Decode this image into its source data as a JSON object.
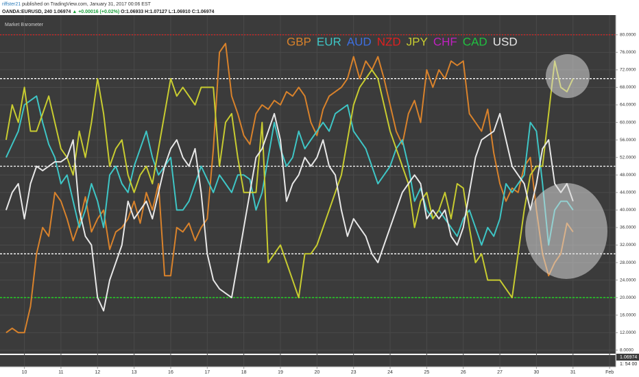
{
  "header": {
    "author": "riffster21",
    "published": "published on TradingView.com, January 31, 2017 00:06 EST",
    "symbol": "OANDA:EURUSD, 240",
    "price": "1.06974",
    "change": "▲ +0.00016 (+0.02%)",
    "ohlc": [
      "O:1.06933",
      "H:1.07127",
      "L:1.06910",
      "C:1.06974"
    ]
  },
  "price_scale": {
    "last": "1.06974",
    "countdown": "1: 54 00"
  },
  "chart_data": {
    "type": "line",
    "title": "Market Barometer",
    "x": [
      1,
      2,
      3,
      4,
      5,
      6,
      7,
      8,
      9,
      10,
      11,
      12,
      13,
      14,
      15,
      16,
      17,
      18,
      19,
      20,
      21,
      22,
      23,
      24,
      25,
      26,
      27,
      28,
      29,
      30,
      31,
      32,
      33,
      34,
      35,
      36,
      37,
      38,
      39,
      40,
      41,
      42,
      43,
      44,
      45,
      46,
      47,
      48,
      49,
      50,
      51,
      52,
      53,
      54,
      55,
      56,
      57,
      58,
      59,
      60,
      61,
      62,
      63,
      64,
      65,
      66,
      67,
      68,
      69,
      70,
      71,
      72,
      73,
      74,
      75,
      76,
      77,
      78,
      79,
      80,
      81,
      82,
      83,
      84,
      85,
      86,
      87,
      88,
      89,
      90,
      91,
      92,
      93,
      94
    ],
    "series": [
      {
        "name": "GBP",
        "color": "#d9822b",
        "values": [
          12,
          13,
          12,
          12,
          18,
          30,
          36,
          34,
          44,
          42,
          38,
          33,
          37,
          43,
          35,
          38,
          40,
          31,
          35,
          36,
          38,
          42,
          37,
          44,
          40,
          46,
          25,
          25,
          36,
          35,
          37,
          33,
          36,
          38,
          54,
          76,
          78,
          66,
          62,
          57,
          55,
          62,
          64,
          63,
          65,
          64,
          67,
          66,
          68,
          66,
          60,
          57,
          63,
          66,
          67,
          68,
          70,
          75,
          70,
          74,
          72,
          75,
          70,
          64,
          58,
          55,
          62,
          65,
          60,
          72,
          68,
          72,
          70,
          74,
          73,
          74,
          62,
          60,
          58,
          63,
          53,
          46,
          42,
          45,
          44,
          50,
          52,
          40,
          30,
          25,
          28,
          30,
          37,
          35
        ]
      },
      {
        "name": "EUR",
        "color": "#3ec6c6",
        "values": [
          52,
          55,
          58,
          64,
          65,
          66,
          60,
          55,
          52,
          46,
          48,
          42,
          36,
          40,
          46,
          42,
          36,
          48,
          50,
          46,
          44,
          50,
          54,
          58,
          52,
          48,
          50,
          52,
          40,
          40,
          42,
          46,
          50,
          47,
          44,
          48,
          46,
          44,
          48,
          48,
          47,
          40,
          44,
          52,
          60,
          54,
          50,
          52,
          58,
          54,
          56,
          58,
          60,
          58,
          62,
          63,
          64,
          58,
          56,
          54,
          50,
          46,
          48,
          50,
          54,
          56,
          50,
          42,
          45,
          40,
          38,
          40,
          38,
          36,
          34,
          38,
          40,
          36,
          32,
          36,
          34,
          38,
          46,
          44,
          46,
          48,
          60,
          58,
          46,
          32,
          40,
          42,
          42,
          40
        ]
      },
      {
        "name": "AUD",
        "color": "#3d6fe0"
      },
      {
        "name": "NZD",
        "color": "#e02020"
      },
      {
        "name": "JPY",
        "color": "#c8cc30",
        "values": [
          56,
          64,
          60,
          68,
          58,
          58,
          62,
          66,
          60,
          54,
          52,
          48,
          58,
          52,
          60,
          70,
          62,
          50,
          54,
          56,
          48,
          44,
          48,
          50,
          46,
          54,
          62,
          70,
          66,
          68,
          66,
          64,
          68,
          68,
          68,
          50,
          60,
          62,
          52,
          44,
          44,
          44,
          60,
          28,
          30,
          32,
          28,
          24,
          20,
          30,
          30,
          32,
          36,
          40,
          44,
          48,
          56,
          64,
          68,
          70,
          72,
          70,
          64,
          58,
          54,
          50,
          46,
          36,
          42,
          44,
          38,
          40,
          44,
          38,
          46,
          45,
          36,
          28,
          30,
          24,
          24,
          24,
          22,
          20,
          30,
          40,
          48,
          50,
          50,
          62,
          74,
          68,
          67,
          70
        ]
      },
      {
        "name": "CHF",
        "color": "#c020c0"
      },
      {
        "name": "CAD",
        "color": "#20c040"
      },
      {
        "name": "USD",
        "color": "#e8e8e8",
        "values": [
          40,
          44,
          46,
          38,
          46,
          50,
          49,
          50,
          51,
          51,
          52,
          56,
          40,
          34,
          32,
          20,
          17,
          24,
          28,
          32,
          42,
          38,
          40,
          42,
          38,
          44,
          50,
          54,
          56,
          52,
          50,
          54,
          44,
          30,
          24,
          22,
          21,
          20,
          28,
          36,
          44,
          52,
          54,
          58,
          62,
          56,
          42,
          46,
          48,
          52,
          50,
          52,
          56,
          50,
          48,
          40,
          34,
          38,
          36,
          34,
          30,
          28,
          32,
          36,
          40,
          44,
          46,
          48,
          46,
          38,
          40,
          38,
          40,
          34,
          32,
          36,
          44,
          52,
          56,
          57,
          58,
          62,
          56,
          50,
          48,
          46,
          40,
          46,
          54,
          56,
          46,
          44,
          46,
          42
        ]
      }
    ],
    "levels": [
      {
        "value": 80,
        "color": "#e02020",
        "dash": "2 2"
      },
      {
        "value": 70,
        "color": "#ffffff",
        "dash": "3 2"
      },
      {
        "value": 50,
        "color": "#ffffff",
        "dash": "3 2"
      },
      {
        "value": 30,
        "color": "#ffffff",
        "dash": "3 2"
      },
      {
        "value": 20,
        "color": "#20e020",
        "dash": "3 2"
      }
    ],
    "xlim": [
      0,
      101
    ],
    "xticks": [
      {
        "value": 4,
        "label": "10"
      },
      {
        "value": 10,
        "label": "11"
      },
      {
        "value": 16,
        "label": "12"
      },
      {
        "value": 22,
        "label": "13"
      },
      {
        "value": 28,
        "label": "16"
      },
      {
        "value": 34,
        "label": "17"
      },
      {
        "value": 40,
        "label": "18"
      },
      {
        "value": 46,
        "label": "19"
      },
      {
        "value": 52,
        "label": "20"
      },
      {
        "value": 58,
        "label": "23"
      },
      {
        "value": 64,
        "label": "24"
      },
      {
        "value": 70,
        "label": "25"
      },
      {
        "value": 76,
        "label": "26"
      },
      {
        "value": 82,
        "label": "27"
      },
      {
        "value": 88,
        "label": "30"
      },
      {
        "value": 94,
        "label": "31"
      },
      {
        "value": 100,
        "label": "Feb"
      }
    ],
    "ylim": [
      7.2,
      84.5
    ],
    "yticks": [
      {
        "value": 8,
        "label": "8.0000"
      },
      {
        "value": 12,
        "label": "12.0000"
      },
      {
        "value": 16,
        "label": "16.0000"
      },
      {
        "value": 20,
        "label": "20.0000"
      },
      {
        "value": 24,
        "label": "24.0000"
      },
      {
        "value": 28,
        "label": "28.0000"
      },
      {
        "value": 32,
        "label": "32.0000"
      },
      {
        "value": 36,
        "label": "36.0000"
      },
      {
        "value": 40,
        "label": "40.0000"
      },
      {
        "value": 44,
        "label": "44.0000"
      },
      {
        "value": 48,
        "label": "48.0000"
      },
      {
        "value": 52,
        "label": "52.0000"
      },
      {
        "value": 56,
        "label": "56.0000"
      },
      {
        "value": 60,
        "label": "60.0000"
      },
      {
        "value": 64,
        "label": "64.0000"
      },
      {
        "value": 68,
        "label": "68.0000"
      },
      {
        "value": 72,
        "label": "72.0000"
      },
      {
        "value": 76,
        "label": "76.0000"
      },
      {
        "value": 80,
        "label": "80.0000"
      }
    ],
    "grid": true
  }
}
